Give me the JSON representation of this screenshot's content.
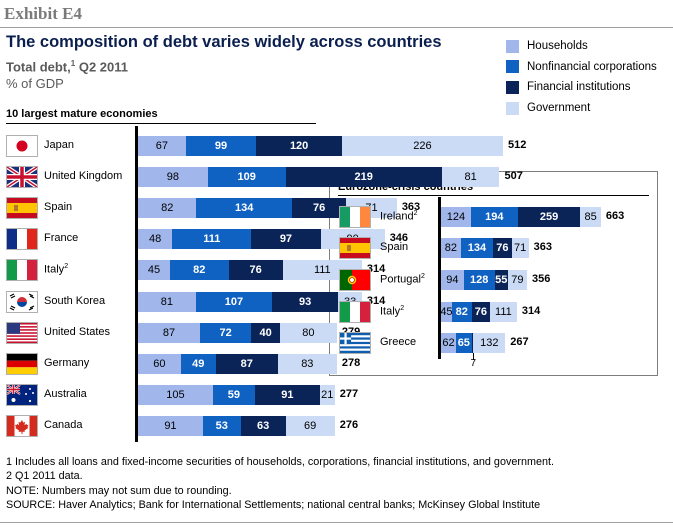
{
  "exhibit": "Exhibit E4",
  "title": "The composition of debt varies widely across countries",
  "subtitle": "Total debt,",
  "subtitle_sup": "1",
  "subtitle_rest": " Q2 2011",
  "unit": "% of GDP",
  "colors": {
    "households": "#a1b7ec",
    "nonfinancial": "#0f61c2",
    "financial": "#0b2458",
    "government": "#cbdbf5"
  },
  "legend": [
    "Households",
    "Nonfinancial corporations",
    "Financial institutions",
    "Government"
  ],
  "chart_data": [
    {
      "type": "bar",
      "orientation": "horizontal",
      "stacked": true,
      "title": "10 largest mature economies",
      "series_names": [
        "Households",
        "Nonfinancial corporations",
        "Financial institutions",
        "Government"
      ],
      "categories": [
        "Japan",
        "United Kingdom",
        "Spain",
        "France",
        "Italy",
        "South Korea",
        "United States",
        "Germany",
        "Australia",
        "Canada"
      ],
      "category_sup": [
        "",
        "",
        "",
        "",
        "2",
        "",
        "",
        "",
        "",
        ""
      ],
      "flags": [
        "japan",
        "uk",
        "spain",
        "france",
        "italy",
        "korea",
        "usa",
        "germany",
        "australia",
        "canada"
      ],
      "series": [
        {
          "name": "Households",
          "values": [
            67,
            98,
            82,
            48,
            45,
            81,
            87,
            60,
            105,
            91
          ]
        },
        {
          "name": "Nonfinancial corporations",
          "values": [
            99,
            109,
            134,
            111,
            82,
            107,
            72,
            49,
            59,
            53
          ]
        },
        {
          "name": "Financial institutions",
          "values": [
            120,
            219,
            76,
            97,
            76,
            93,
            40,
            87,
            91,
            63
          ]
        },
        {
          "name": "Government",
          "values": [
            226,
            81,
            71,
            90,
            111,
            33,
            80,
            83,
            21,
            69
          ]
        }
      ],
      "totals": [
        512,
        507,
        363,
        346,
        314,
        314,
        279,
        278,
        277,
        276
      ]
    },
    {
      "type": "bar",
      "orientation": "horizontal",
      "stacked": true,
      "title": "Eurozone-crisis countries",
      "series_names": [
        "Households",
        "Nonfinancial corporations",
        "Financial institutions",
        "Government"
      ],
      "categories": [
        "Ireland",
        "Spain",
        "Portugal",
        "Italy",
        "Greece"
      ],
      "category_sup": [
        "2",
        "",
        "2",
        "2",
        ""
      ],
      "flags": [
        "ireland",
        "spain",
        "portugal",
        "italy",
        "greece"
      ],
      "series": [
        {
          "name": "Households",
          "values": [
            124,
            82,
            94,
            45,
            62
          ]
        },
        {
          "name": "Nonfinancial corporations",
          "values": [
            194,
            134,
            128,
            82,
            65
          ]
        },
        {
          "name": "Financial institutions",
          "values": [
            259,
            76,
            55,
            76,
            7
          ]
        },
        {
          "name": "Government",
          "values": [
            85,
            71,
            79,
            111,
            132
          ]
        }
      ],
      "totals": [
        663,
        363,
        356,
        314,
        267
      ],
      "callout": {
        "category": "Greece",
        "label": "7"
      }
    }
  ],
  "notes": [
    "1  Includes all loans and fixed-income securities of households, corporations, financial institutions, and government.",
    "2  Q1 2011 data.",
    "NOTE: Numbers may not sum due to rounding.",
    "SOURCE: Haver Analytics; Bank for International Settlements; national central banks; McKinsey Global Institute"
  ]
}
